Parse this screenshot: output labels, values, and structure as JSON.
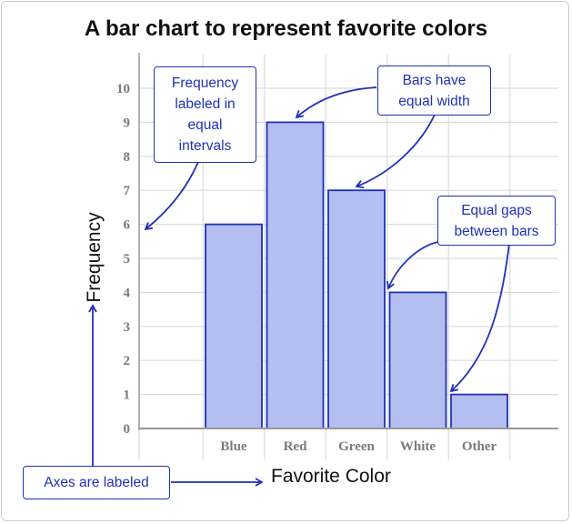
{
  "chart_data": {
    "type": "bar",
    "title": "A bar chart to represent favorite colors",
    "xlabel": "Favorite Color",
    "ylabel": "Frequency",
    "categories": [
      "Blue",
      "Red",
      "Green",
      "White",
      "Other"
    ],
    "values": [
      6,
      9,
      7,
      4,
      1
    ],
    "ylim": [
      0,
      10
    ],
    "yticks": [
      "0",
      "1",
      "2",
      "3",
      "4",
      "5",
      "6",
      "7",
      "8",
      "9",
      "10"
    ],
    "grid": true,
    "bar_color": "#b4bef0",
    "bar_edge_color": "#1f31b8"
  },
  "annotations": {
    "frequency": [
      "Frequency",
      "labeled in",
      "equal",
      "intervals"
    ],
    "bars_width": [
      "Bars have",
      "equal width"
    ],
    "gaps": [
      "Equal gaps",
      "between bars"
    ],
    "axes": "Axes are labeled"
  },
  "colors": {
    "accent": "#1f31b8",
    "grid": "#dcdcdc",
    "axis": "#9a9a9a",
    "tick_text": "#7a7a7a"
  }
}
